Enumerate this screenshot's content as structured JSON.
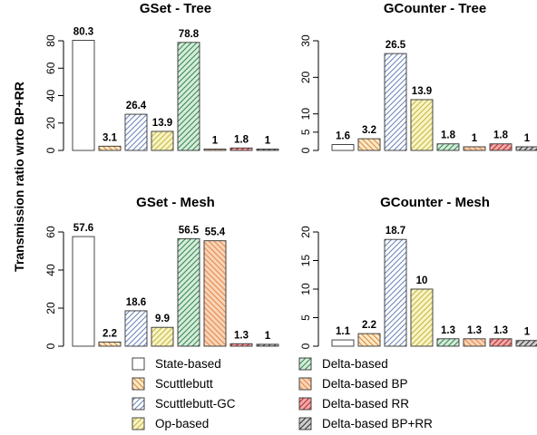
{
  "ylabel": "Transmission ratio wrto BP+RR",
  "legend": {
    "position": "bottom",
    "entries": [
      {
        "name": "State-based",
        "fill": "#ffffff",
        "hatch": "none",
        "hatch_color": "#ffffff"
      },
      {
        "name": "Scuttlebutt",
        "fill": "#fde8c8",
        "hatch": "back",
        "hatch_color": "#d98c3a"
      },
      {
        "name": "Scuttlebutt-GC",
        "fill": "#ffffff",
        "hatch": "fwd",
        "hatch_color": "#6f88b8"
      },
      {
        "name": "Op-based",
        "fill": "#f8f4c4",
        "hatch": "fwd",
        "hatch_color": "#c7b84a"
      },
      {
        "name": "Delta-based",
        "fill": "#d6ecdb",
        "hatch": "fwd",
        "hatch_color": "#3a8a55"
      },
      {
        "name": "Delta-based BP",
        "fill": "#fbd4b6",
        "hatch": "back",
        "hatch_color": "#e08a4f"
      },
      {
        "name": "Delta-based RR",
        "fill": "#f2a8a8",
        "hatch": "fwd",
        "hatch_color": "#b83030"
      },
      {
        "name": "Delta-based BP+RR",
        "fill": "#cfcfcf",
        "hatch": "fwd",
        "hatch_color": "#333333"
      }
    ]
  },
  "chart_data": [
    {
      "type": "bar",
      "title": "GSet - Tree",
      "categories": [
        "State-based",
        "Scuttlebutt",
        "Scuttlebutt-GC",
        "Op-based",
        "Delta-based",
        "Delta-based BP",
        "Delta-based RR",
        "Delta-based BP+RR"
      ],
      "values": [
        80.3,
        3.1,
        26.4,
        13.9,
        78.8,
        1,
        1.8,
        1
      ],
      "value_labels": [
        "80.3",
        "3.1",
        "26.4",
        "13.9",
        "78.8",
        "1",
        "1.8",
        "1"
      ],
      "ylim": [
        0,
        80
      ],
      "yticks": [
        0,
        20,
        40,
        60,
        80
      ],
      "ytick_labels": [
        "0",
        "20",
        "40",
        "60",
        "80"
      ]
    },
    {
      "type": "bar",
      "title": "GCounter - Tree",
      "categories": [
        "State-based",
        "Scuttlebutt",
        "Scuttlebutt-GC",
        "Op-based",
        "Delta-based",
        "Delta-based BP",
        "Delta-based RR",
        "Delta-based BP+RR"
      ],
      "values": [
        1.6,
        3.2,
        26.5,
        13.9,
        1.8,
        1,
        1.8,
        1
      ],
      "value_labels": [
        "1.6",
        "3.2",
        "26.5",
        "13.9",
        "1.8",
        "1",
        "1.8",
        "1"
      ],
      "ylim": [
        0,
        30
      ],
      "yticks": [
        0,
        5,
        10,
        20,
        30
      ],
      "ytick_labels": [
        "0",
        "5",
        "10",
        "20",
        "30"
      ]
    },
    {
      "type": "bar",
      "title": "GSet - Mesh",
      "categories": [
        "State-based",
        "Scuttlebutt",
        "Scuttlebutt-GC",
        "Op-based",
        "Delta-based",
        "Delta-based BP",
        "Delta-based RR",
        "Delta-based BP+RR"
      ],
      "values": [
        57.6,
        2.2,
        18.6,
        9.9,
        56.5,
        55.4,
        1.3,
        1
      ],
      "value_labels": [
        "57.6",
        "2.2",
        "18.6",
        "9.9",
        "56.5",
        "55.4",
        "1.3",
        "1"
      ],
      "ylim": [
        0,
        60
      ],
      "yticks": [
        0,
        20,
        40,
        60
      ],
      "ytick_labels": [
        "0",
        "20",
        "40",
        "60"
      ]
    },
    {
      "type": "bar",
      "title": "GCounter - Mesh",
      "categories": [
        "State-based",
        "Scuttlebutt",
        "Scuttlebutt-GC",
        "Op-based",
        "Delta-based",
        "Delta-based BP",
        "Delta-based RR",
        "Delta-based BP+RR"
      ],
      "values": [
        1.1,
        2.2,
        18.7,
        10,
        1.3,
        1.3,
        1.3,
        1
      ],
      "value_labels": [
        "1.1",
        "2.2",
        "18.7",
        "10",
        "1.3",
        "1.3",
        "1.3",
        "1"
      ],
      "ylim": [
        0,
        20
      ],
      "yticks": [
        0,
        5,
        10,
        15,
        20
      ],
      "ytick_labels": [
        "0",
        "5",
        "10",
        "15",
        "20"
      ]
    }
  ]
}
